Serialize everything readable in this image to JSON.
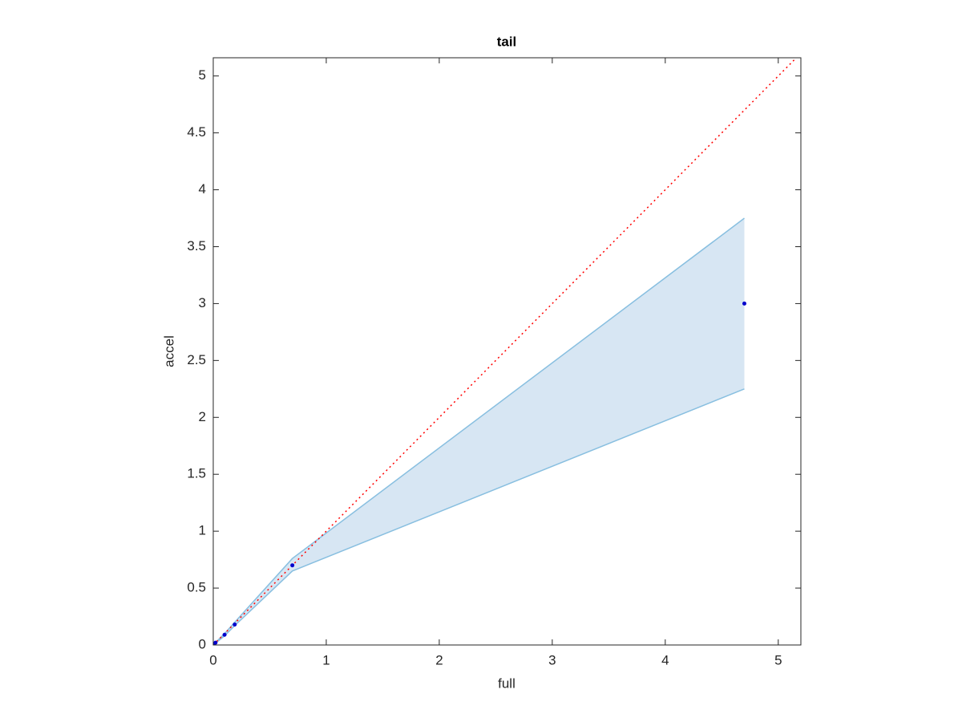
{
  "chart_data": {
    "type": "line",
    "title": "tail",
    "xlabel": "full",
    "ylabel": "accel",
    "xlim": [
      0,
      5.2
    ],
    "ylim": [
      0,
      5.16
    ],
    "xticks": [
      0,
      1,
      2,
      3,
      4,
      5
    ],
    "yticks": [
      0,
      0.5,
      1,
      1.5,
      2,
      2.5,
      3,
      3.5,
      4,
      4.5,
      5
    ],
    "band": {
      "x": [
        0,
        0.1,
        0.19,
        0.7,
        4.7
      ],
      "upper": [
        0,
        0.1,
        0.2,
        0.76,
        3.75
      ],
      "lower": [
        0,
        0.08,
        0.17,
        0.65,
        2.25
      ],
      "color": "#d7e6f3",
      "edge_color": "#88bfe0"
    },
    "points": {
      "x": [
        0,
        0.02,
        0.1,
        0.19,
        0.7,
        4.7
      ],
      "y": [
        0,
        0.02,
        0.09,
        0.18,
        0.7,
        3.0
      ],
      "color": "#0000cc"
    },
    "reference": {
      "x": [
        0,
        5.2
      ],
      "y": [
        0,
        5.2
      ],
      "color": "#ff0000"
    }
  }
}
